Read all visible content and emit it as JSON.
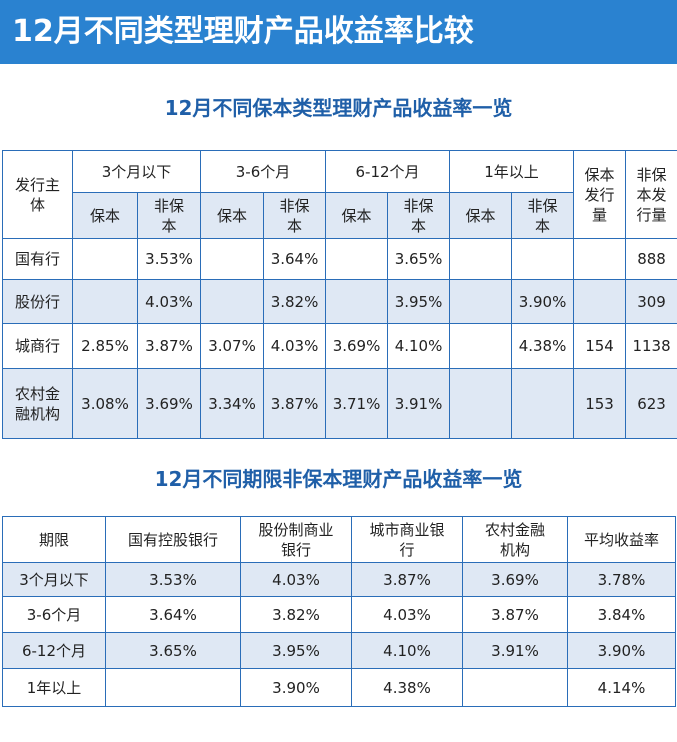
{
  "page_title": "12月不同类型理财产品收益率比较",
  "table1": {
    "title": "12月不同保本类型理财产品收益率一览",
    "issuer_header": "发行主体",
    "periods": [
      "3个月以下",
      "3-6个月",
      "6-12个月",
      "1年以上"
    ],
    "sub_baoben": "保本",
    "sub_feibaoben": "非保本",
    "count_baoben": "保本发行量",
    "count_feibaoben": "非保本发行量",
    "rows": [
      {
        "issuer": "国有行",
        "values": [
          "",
          "3.53%",
          "",
          "3.64%",
          "",
          "3.65%",
          "",
          ""
        ],
        "cnt_bb": "",
        "cnt_fbb": "888"
      },
      {
        "issuer": "股份行",
        "values": [
          "",
          "4.03%",
          "",
          "3.82%",
          "",
          "3.95%",
          "",
          "3.90%"
        ],
        "cnt_bb": "",
        "cnt_fbb": "309"
      },
      {
        "issuer": "城商行",
        "values": [
          "2.85%",
          "3.87%",
          "3.07%",
          "4.03%",
          "3.69%",
          "4.10%",
          "",
          "4.38%"
        ],
        "cnt_bb": "154",
        "cnt_fbb": "1138"
      },
      {
        "issuer": "农村金融机构",
        "values": [
          "3.08%",
          "3.69%",
          "3.34%",
          "3.87%",
          "3.71%",
          "3.91%",
          "",
          ""
        ],
        "cnt_bb": "153",
        "cnt_fbb": "623"
      }
    ]
  },
  "table2": {
    "title": "12月不同期限非保本理财产品收益率一览",
    "headers": [
      "期限",
      "国有控股银行",
      "股份制商业银行",
      "城市商业银行",
      "农村金融机构",
      "平均收益率"
    ],
    "rows": [
      [
        "3个月以下",
        "3.53%",
        "4.03%",
        "3.87%",
        "3.69%",
        "3.78%"
      ],
      [
        "3-6个月",
        "3.64%",
        "3.82%",
        "4.03%",
        "3.87%",
        "3.84%"
      ],
      [
        "6-12个月",
        "3.65%",
        "3.95%",
        "4.10%",
        "3.91%",
        "3.90%"
      ],
      [
        "1年以上",
        "",
        "3.90%",
        "4.38%",
        "",
        "4.14%"
      ]
    ]
  }
}
